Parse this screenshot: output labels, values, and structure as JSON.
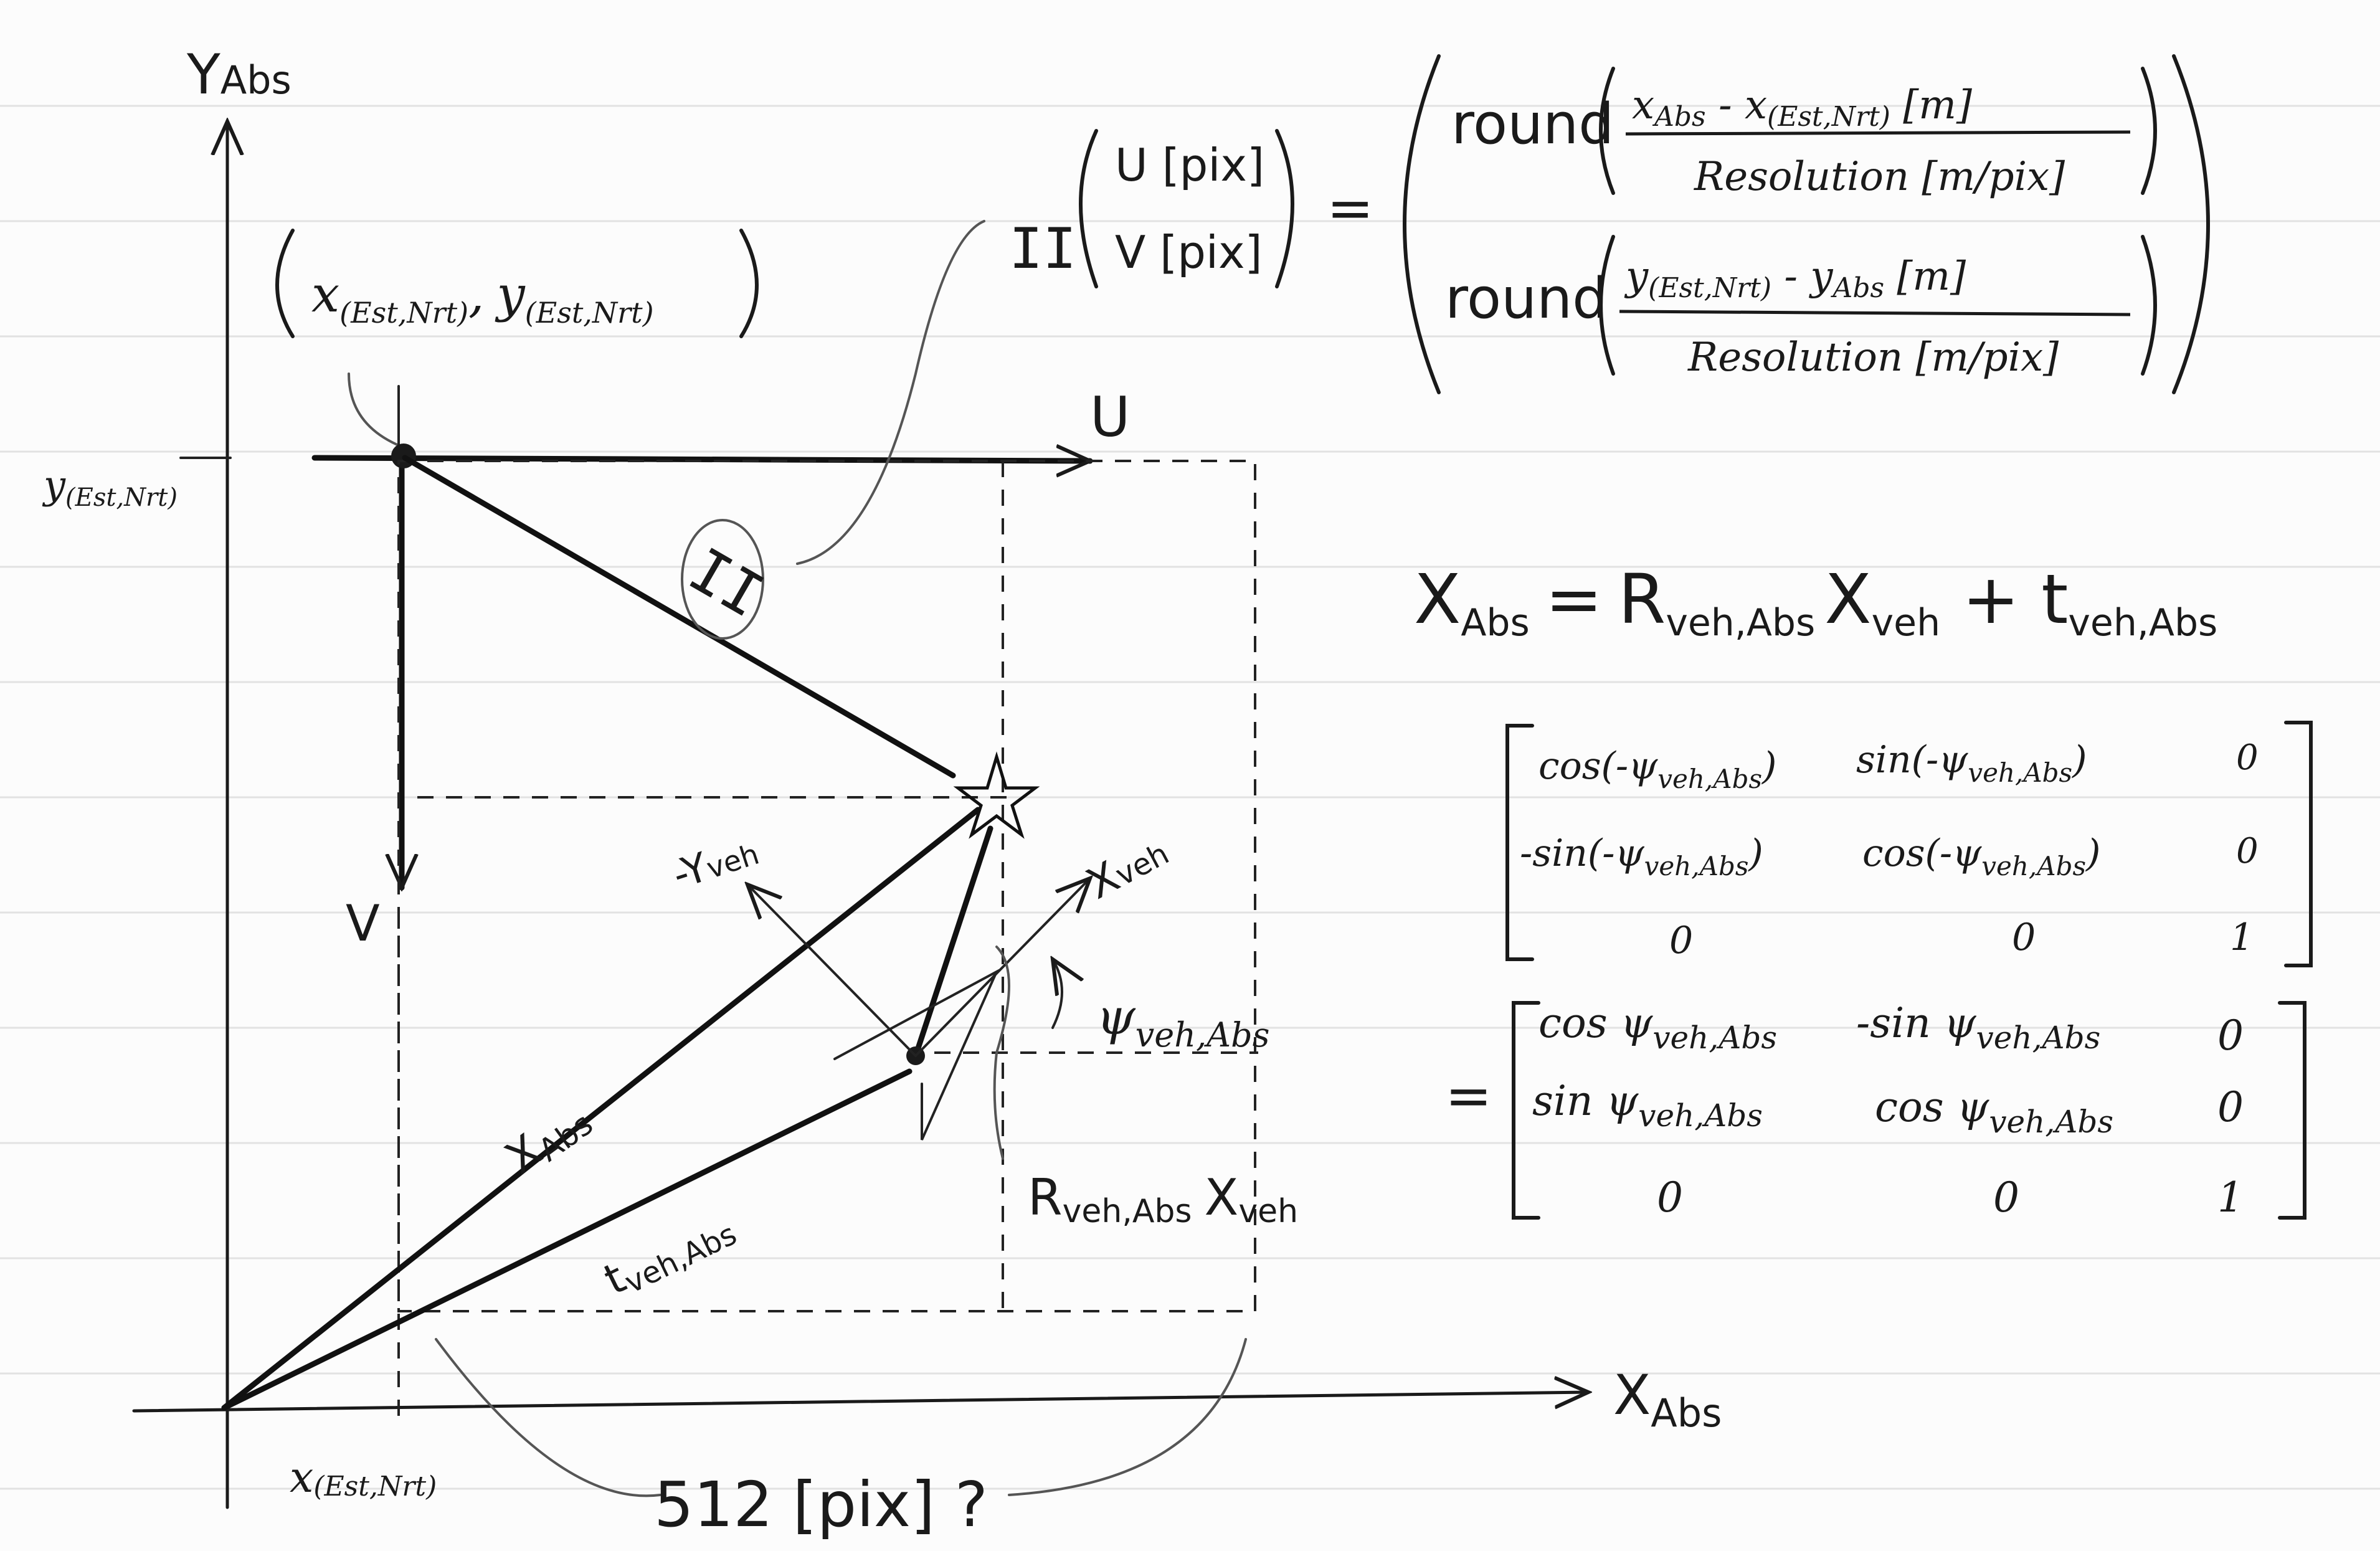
{
  "axes": {
    "y_label": "Y",
    "y_sub": "Abs",
    "x_label": "X",
    "x_sub": "Abs"
  },
  "origin_point": {
    "label_x": "x",
    "label_y": "y",
    "sub": "(Est,Nrt)",
    "comma": ",",
    "y_tick_label": "y",
    "x_tick_label": "x"
  },
  "local_axes": {
    "u": "U",
    "v": "V"
  },
  "transform": {
    "symbol": "II"
  },
  "pixel_formula": {
    "u_entry": "U [pix]",
    "v_entry": "V [pix]",
    "equals": "=",
    "round1": "round",
    "round2": "round",
    "num1": "x",
    "num1_sub": "Abs",
    "num1_minus": " - x",
    "num1_sub2": "(Est,Nrt)",
    "num1_unit": " [m]",
    "num2": "y",
    "num2_sub": "(Est,Nrt)",
    "num2_minus": " - y",
    "num2_sub2": "Abs",
    "num2_unit": " [m]",
    "den": "Resolution [m/pix]"
  },
  "pose_formula": {
    "lhs": "X",
    "lhs_sub": "Abs",
    "eq": "=",
    "r": "R",
    "r_sub": "veh,Abs",
    "x": "X",
    "x_sub": "veh",
    "plus": "+",
    "t": "t",
    "t_sub": "veh,Abs"
  },
  "matrix1": {
    "rows": [
      [
        "cos(-ψ",
        "veh,Abs",
        ")",
        "sin(-ψ",
        "veh,Abs",
        ")",
        "0"
      ],
      [
        "-sin(-ψ",
        "veh,Abs",
        ")",
        "cos(-ψ",
        "veh,Abs",
        ")",
        "0"
      ],
      [
        "0",
        "",
        "",
        "0",
        "",
        "",
        "1"
      ]
    ]
  },
  "matrix2": {
    "eq": "=",
    "rows": [
      [
        "cos ψ",
        "veh,Abs",
        "-sin ψ",
        "veh,Abs",
        "0"
      ],
      [
        "sin ψ",
        "veh,Abs",
        "cos ψ",
        "veh,Abs",
        "0"
      ],
      [
        "0",
        "",
        "0",
        "",
        "1"
      ]
    ]
  },
  "vectors": {
    "x_abs": "X",
    "x_abs_sub": "Abs",
    "t_veh": "t",
    "t_veh_sub": "veh,Abs",
    "x_veh": "X",
    "x_veh_sub": "veh",
    "y_veh": "-Y",
    "y_veh_sub": "veh",
    "psi": "ψ",
    "psi_sub": "veh,Abs",
    "rx": "R",
    "rx_sub": "veh,Abs",
    "rx_x": "X",
    "rx_x_sub": "veh"
  },
  "bottom_note": "512 [pix] ?"
}
